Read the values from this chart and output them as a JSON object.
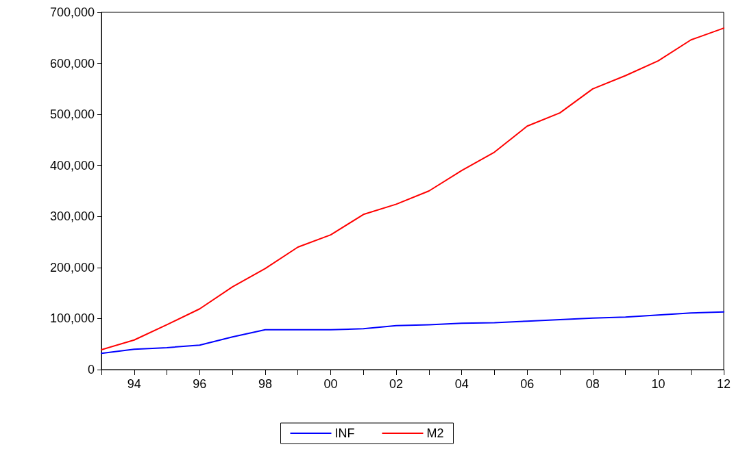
{
  "chart_data": {
    "type": "line",
    "categories": [
      null,
      "94",
      null,
      "96",
      null,
      "98",
      null,
      "00",
      null,
      "02",
      null,
      "04",
      null,
      "06",
      null,
      "08",
      null,
      "10",
      null,
      "12"
    ],
    "series": [
      {
        "name": "INF",
        "color": "#0000ff",
        "values": [
          32000,
          40000,
          43000,
          48000,
          64000,
          78000,
          78000,
          78000,
          80000,
          86000,
          88000,
          91000,
          92000,
          95000,
          98000,
          101000,
          103000,
          107000,
          111000,
          113000
        ]
      },
      {
        "name": "M2",
        "color": "#ff0000",
        "values": [
          39000,
          58000,
          88000,
          119000,
          162000,
          198000,
          240000,
          264000,
          304000,
          324000,
          350000,
          390000,
          426000,
          477000,
          503000,
          550000,
          576000,
          605000,
          646000,
          669000
        ]
      }
    ],
    "ylim": [
      0,
      700000
    ],
    "yticks": [
      {
        "value": 0,
        "label": "0"
      },
      {
        "value": 100000,
        "label": "100,000"
      },
      {
        "value": 200000,
        "label": "200,000"
      },
      {
        "value": 300000,
        "label": "300,000"
      },
      {
        "value": 400000,
        "label": "400,000"
      },
      {
        "value": 500000,
        "label": "500,000"
      },
      {
        "value": 600000,
        "label": "600,000"
      },
      {
        "value": 700000,
        "label": "700,000"
      }
    ],
    "grid": false,
    "legend": "bottom",
    "marker": "none",
    "line_style": "solid"
  }
}
